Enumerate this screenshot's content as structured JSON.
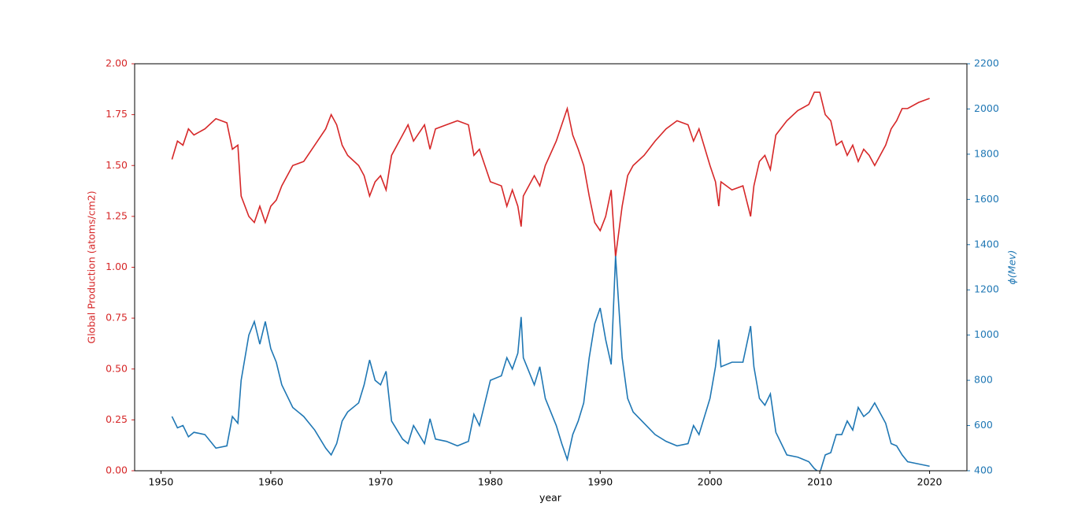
{
  "chart_data": {
    "type": "line",
    "x_label": "year",
    "y_label": "Global Production (atoms/cm2)",
    "y2_label": "ϕ(Mev)",
    "x": [
      1951,
      1951.5,
      1952,
      1952.5,
      1953,
      1954,
      1955,
      1956,
      1956.5,
      1957,
      1957.3,
      1958,
      1958.5,
      1959,
      1959.5,
      1960,
      1960.5,
      1961,
      1962,
      1963,
      1964,
      1965,
      1965.5,
      1966,
      1966.5,
      1967,
      1968,
      1968.5,
      1969,
      1969.5,
      1970,
      1970.5,
      1971,
      1972,
      1972.5,
      1973,
      1974,
      1974.5,
      1975,
      1976,
      1977,
      1978,
      1978.5,
      1979,
      1979.5,
      1980,
      1981,
      1981.5,
      1982,
      1982.5,
      1982.8,
      1983,
      1984,
      1984.5,
      1985,
      1986,
      1986.5,
      1987,
      1987.5,
      1988,
      1988.5,
      1989,
      1989.5,
      1990,
      1990.5,
      1991,
      1991.4,
      1992,
      1992.5,
      1993,
      1994,
      1995,
      1996,
      1997,
      1998,
      1998.5,
      1999,
      2000,
      2000.5,
      2000.8,
      2001,
      2002,
      2003,
      2003.7,
      2004,
      2004.5,
      2005,
      2005.5,
      2006,
      2007,
      2008,
      2009,
      2009.5,
      2010,
      2010.5,
      2011,
      2011.5,
      2012,
      2012.5,
      2013,
      2013.5,
      2014,
      2014.5,
      2015,
      2016,
      2016.5,
      2017,
      2017.5,
      2018,
      2019,
      2020
    ],
    "series": [
      {
        "name": "Global Production",
        "color": "#d62728",
        "axis": "y",
        "values": [
          1.53,
          1.62,
          1.6,
          1.68,
          1.65,
          1.68,
          1.73,
          1.71,
          1.58,
          1.6,
          1.35,
          1.25,
          1.22,
          1.3,
          1.22,
          1.3,
          1.33,
          1.4,
          1.5,
          1.52,
          1.6,
          1.68,
          1.75,
          1.7,
          1.6,
          1.55,
          1.5,
          1.45,
          1.35,
          1.42,
          1.45,
          1.38,
          1.55,
          1.65,
          1.7,
          1.62,
          1.7,
          1.58,
          1.68,
          1.7,
          1.72,
          1.7,
          1.55,
          1.58,
          1.5,
          1.42,
          1.4,
          1.3,
          1.38,
          1.3,
          1.2,
          1.35,
          1.45,
          1.4,
          1.5,
          1.62,
          1.7,
          1.78,
          1.65,
          1.58,
          1.5,
          1.35,
          1.22,
          1.18,
          1.25,
          1.38,
          1.05,
          1.3,
          1.45,
          1.5,
          1.55,
          1.62,
          1.68,
          1.72,
          1.7,
          1.62,
          1.68,
          1.5,
          1.42,
          1.3,
          1.42,
          1.38,
          1.4,
          1.25,
          1.4,
          1.52,
          1.55,
          1.48,
          1.65,
          1.72,
          1.77,
          1.8,
          1.86,
          1.86,
          1.75,
          1.72,
          1.6,
          1.62,
          1.55,
          1.6,
          1.52,
          1.58,
          1.55,
          1.5,
          1.6,
          1.68,
          1.72,
          1.78,
          1.78,
          1.81,
          1.83
        ]
      },
      {
        "name": "ϕ",
        "color": "#1f77b4",
        "axis": "y2",
        "values": [
          640,
          590,
          600,
          550,
          570,
          560,
          500,
          510,
          640,
          610,
          800,
          1000,
          1060,
          960,
          1060,
          940,
          880,
          780,
          680,
          640,
          580,
          500,
          470,
          520,
          620,
          660,
          700,
          780,
          890,
          800,
          780,
          840,
          620,
          540,
          520,
          600,
          520,
          630,
          540,
          530,
          510,
          530,
          650,
          600,
          700,
          800,
          820,
          900,
          850,
          920,
          1080,
          900,
          780,
          860,
          720,
          600,
          520,
          450,
          560,
          620,
          700,
          900,
          1050,
          1120,
          980,
          870,
          1350,
          900,
          720,
          660,
          610,
          560,
          530,
          510,
          520,
          600,
          560,
          720,
          860,
          980,
          860,
          880,
          880,
          1040,
          860,
          720,
          690,
          740,
          570,
          470,
          460,
          440,
          410,
          390,
          470,
          480,
          560,
          560,
          620,
          580,
          680,
          640,
          660,
          700,
          610,
          520,
          510,
          470,
          440,
          430,
          420
        ]
      }
    ],
    "xlim": [
      1947.6,
      2023.4
    ],
    "xticks": [
      1950,
      1960,
      1970,
      1980,
      1990,
      2000,
      2010,
      2020
    ],
    "ylim": [
      0,
      2
    ],
    "yticks": [
      {
        "value": 0,
        "label": "0.00"
      },
      {
        "value": 0.25,
        "label": "0.25"
      },
      {
        "value": 0.5,
        "label": "0.50"
      },
      {
        "value": 0.75,
        "label": "0.75"
      },
      {
        "value": 1,
        "label": "1.00"
      },
      {
        "value": 1.25,
        "label": "1.25"
      },
      {
        "value": 1.5,
        "label": "1.50"
      },
      {
        "value": 1.75,
        "label": "1.75"
      },
      {
        "value": 2,
        "label": "2.00"
      }
    ],
    "y2lim": [
      400,
      2200
    ],
    "y2ticks": [
      400,
      600,
      800,
      1000,
      1200,
      1400,
      1600,
      1800,
      2000,
      2200
    ],
    "grid": false
  }
}
